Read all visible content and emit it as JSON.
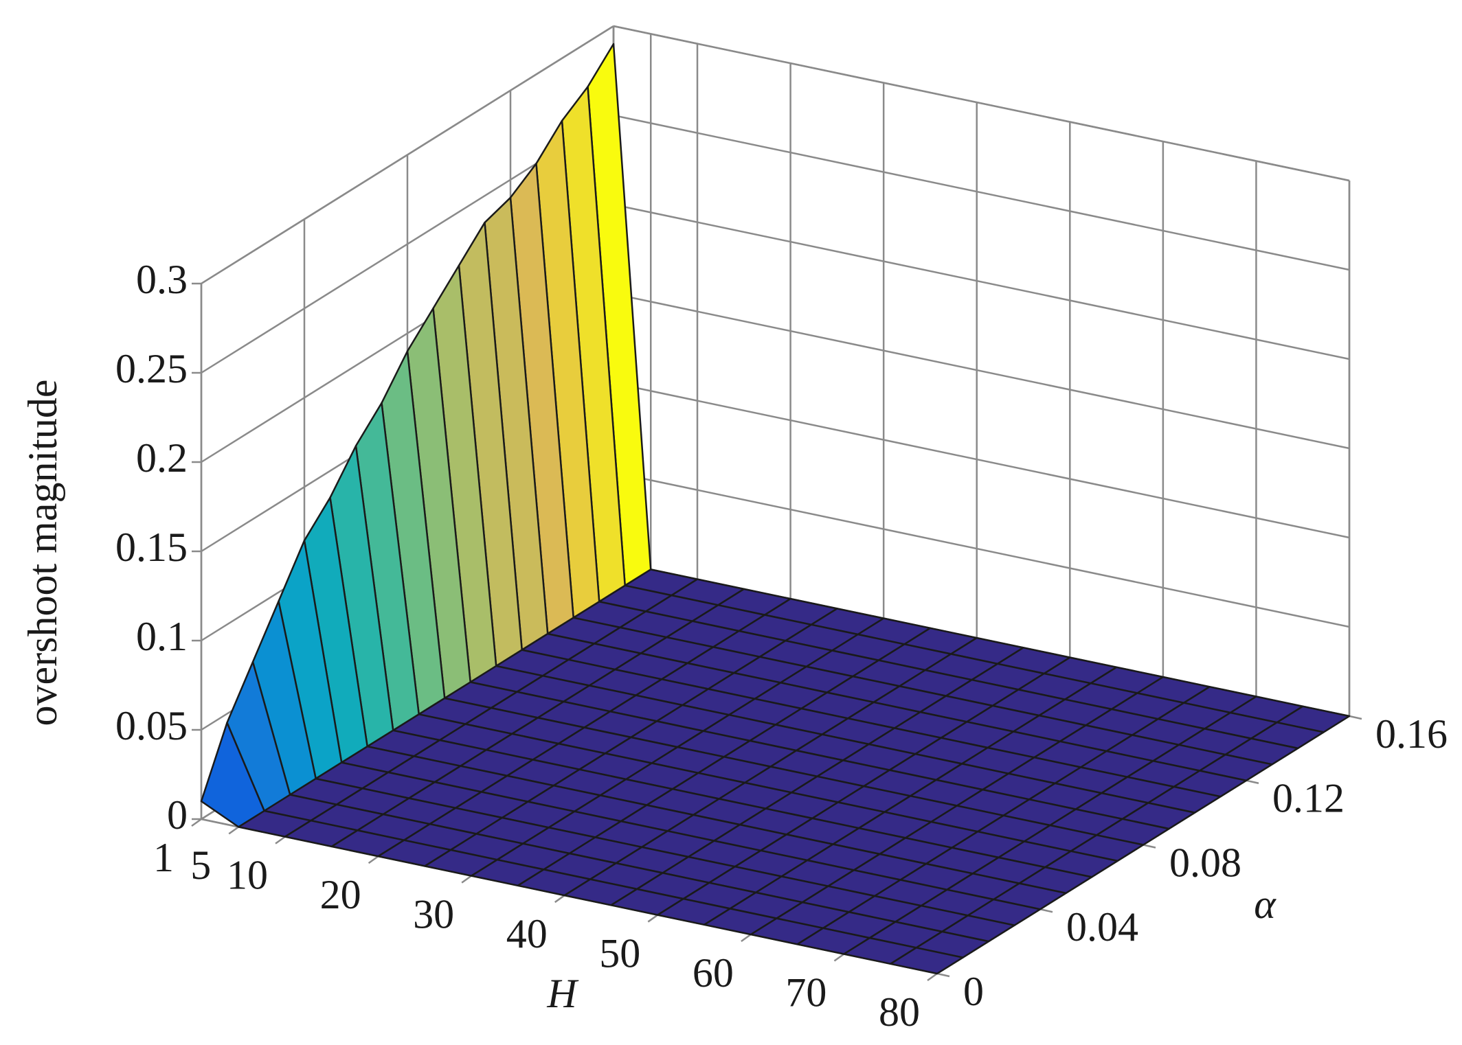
{
  "chart_data": {
    "type": "surface3d",
    "xlabel": "H",
    "ylabel": "α",
    "zlabel": "overshoot magnitude",
    "x": [
      1,
      5,
      10,
      15,
      20,
      25,
      30,
      35,
      40,
      45,
      50,
      55,
      60,
      65,
      70,
      75,
      80
    ],
    "y": [
      0,
      0.01,
      0.02,
      0.03,
      0.04,
      0.05,
      0.06,
      0.07,
      0.08,
      0.09,
      0.1,
      0.11,
      0.12,
      0.13,
      0.14,
      0.15,
      0.16
    ],
    "z": [
      [
        0.01,
        0,
        0,
        0,
        0,
        0,
        0,
        0,
        0,
        0,
        0,
        0,
        0,
        0,
        0,
        0,
        0
      ],
      [
        0.045,
        0,
        0,
        0,
        0,
        0,
        0,
        0,
        0,
        0,
        0,
        0,
        0,
        0,
        0,
        0,
        0
      ],
      [
        0.07,
        0,
        0,
        0,
        0,
        0,
        0,
        0,
        0,
        0,
        0,
        0,
        0,
        0,
        0,
        0,
        0
      ],
      [
        0.095,
        0,
        0,
        0,
        0,
        0,
        0,
        0,
        0,
        0,
        0,
        0,
        0,
        0,
        0,
        0,
        0
      ],
      [
        0.12,
        0,
        0,
        0,
        0,
        0,
        0,
        0,
        0,
        0,
        0,
        0,
        0,
        0,
        0,
        0,
        0
      ],
      [
        0.135,
        0,
        0,
        0,
        0,
        0,
        0,
        0,
        0,
        0,
        0,
        0,
        0,
        0,
        0,
        0,
        0
      ],
      [
        0.155,
        0,
        0,
        0,
        0,
        0,
        0,
        0,
        0,
        0,
        0,
        0,
        0,
        0,
        0,
        0,
        0
      ],
      [
        0.17,
        0,
        0,
        0,
        0,
        0,
        0,
        0,
        0,
        0,
        0,
        0,
        0,
        0,
        0,
        0,
        0
      ],
      [
        0.19,
        0,
        0,
        0,
        0,
        0,
        0,
        0,
        0,
        0,
        0,
        0,
        0,
        0,
        0,
        0,
        0
      ],
      [
        0.205,
        0,
        0,
        0,
        0,
        0,
        0,
        0,
        0,
        0,
        0,
        0,
        0,
        0,
        0,
        0,
        0
      ],
      [
        0.22,
        0,
        0,
        0,
        0,
        0,
        0,
        0,
        0,
        0,
        0,
        0,
        0,
        0,
        0,
        0,
        0
      ],
      [
        0.235,
        0,
        0,
        0,
        0,
        0,
        0,
        0,
        0,
        0,
        0,
        0,
        0,
        0,
        0,
        0,
        0
      ],
      [
        0.24,
        0,
        0,
        0,
        0,
        0,
        0,
        0,
        0,
        0,
        0,
        0,
        0,
        0,
        0,
        0,
        0
      ],
      [
        0.25,
        0,
        0,
        0,
        0,
        0,
        0,
        0,
        0,
        0,
        0,
        0,
        0,
        0,
        0,
        0,
        0
      ],
      [
        0.265,
        0,
        0,
        0,
        0,
        0,
        0,
        0,
        0,
        0,
        0,
        0,
        0,
        0,
        0,
        0,
        0
      ],
      [
        0.275,
        0,
        0,
        0,
        0,
        0,
        0,
        0,
        0,
        0,
        0,
        0,
        0,
        0,
        0,
        0,
        0
      ],
      [
        0.29,
        0,
        0,
        0,
        0,
        0,
        0,
        0,
        0,
        0,
        0,
        0,
        0,
        0,
        0,
        0,
        0
      ]
    ],
    "xlim": [
      1,
      80
    ],
    "ylim": [
      0,
      0.16
    ],
    "zlim": [
      0,
      0.3
    ],
    "xticks": [
      1,
      5,
      10,
      20,
      30,
      40,
      50,
      60,
      70,
      80
    ],
    "yticks": [
      0,
      0.04,
      0.08,
      0.12,
      0.16
    ],
    "zticks": [
      0,
      0.05,
      0.1,
      0.15,
      0.2,
      0.25,
      0.3
    ],
    "grid": true,
    "colormap": "parula",
    "edge_color": "#1a1a1a"
  }
}
